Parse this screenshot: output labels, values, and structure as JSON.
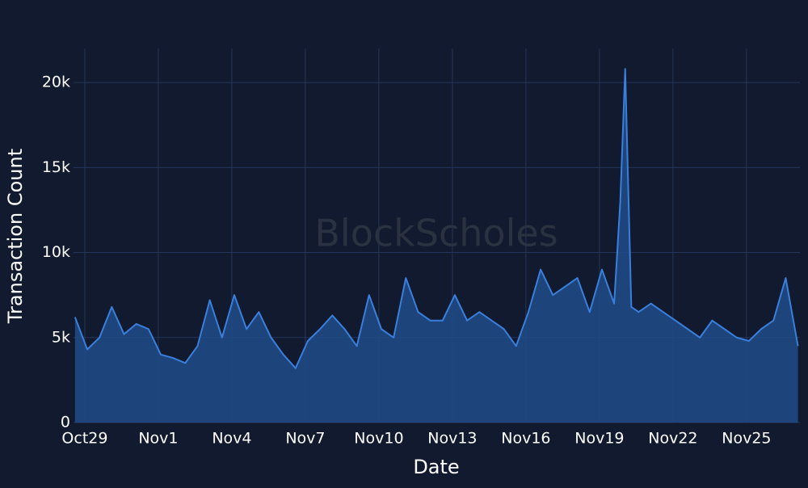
{
  "chart_data": {
    "type": "area",
    "watermark": "BlockScholes",
    "x_label": "Date",
    "y_label": "Transaction Count",
    "x": [
      -0.4,
      0.1,
      0.6,
      1.1,
      1.6,
      2.1,
      2.6,
      3.1,
      3.6,
      4.1,
      4.6,
      5.1,
      5.6,
      6.1,
      6.6,
      7.1,
      7.6,
      8.1,
      8.6,
      9.1,
      9.6,
      10.1,
      10.6,
      11.1,
      11.6,
      12.1,
      12.6,
      13.1,
      13.6,
      14.1,
      14.6,
      15.1,
      15.6,
      16.1,
      16.6,
      17.1,
      17.6,
      18.1,
      18.6,
      19.1,
      19.6,
      20.1,
      20.6,
      21.1,
      21.6,
      21.85,
      22.05,
      22.3,
      22.6,
      23.1,
      23.6,
      24.1,
      24.6,
      25.1,
      25.6,
      26.1,
      26.6,
      27.1,
      27.6,
      28.1,
      28.6,
      29.1
    ],
    "series": [
      {
        "name": "Transaction Count",
        "color": "#3a7fdc",
        "fill": "#1f4a85",
        "values": [
          6200,
          4300,
          5000,
          6800,
          5200,
          5800,
          5500,
          4000,
          3800,
          3500,
          4500,
          7200,
          5000,
          7500,
          5500,
          6500,
          5000,
          4000,
          3200,
          4800,
          5500,
          6300,
          5500,
          4500,
          7500,
          5500,
          5000,
          8500,
          6500,
          6000,
          6000,
          7500,
          6000,
          6500,
          6000,
          5500,
          4500,
          6500,
          9000,
          7500,
          8000,
          8500,
          6500,
          9000,
          7000,
          13000,
          20800,
          6800,
          6500,
          7000,
          6500,
          6000,
          5500,
          5000,
          6000,
          5500,
          5000,
          4800,
          5500,
          6000,
          8500,
          4500
        ]
      }
    ],
    "xlim": [
      -0.46,
      29.18
    ],
    "xticks": [
      {
        "value": 0,
        "label": "Oct29"
      },
      {
        "value": 3,
        "label": "Nov1"
      },
      {
        "value": 6,
        "label": "Nov4"
      },
      {
        "value": 9,
        "label": "Nov7"
      },
      {
        "value": 12,
        "label": "Nov10"
      },
      {
        "value": 15,
        "label": "Nov13"
      },
      {
        "value": 18,
        "label": "Nov16"
      },
      {
        "value": 21,
        "label": "Nov19"
      },
      {
        "value": 24,
        "label": "Nov22"
      },
      {
        "value": 27,
        "label": "Nov25"
      }
    ],
    "ylim": [
      0,
      22000
    ],
    "yticks": [
      0,
      {
        "value": 5000,
        "label": "5k"
      },
      {
        "value": 10000,
        "label": "10k"
      },
      {
        "value": 15000,
        "label": "15k"
      },
      {
        "value": 20000,
        "label": "20k"
      }
    ],
    "grid": true
  }
}
